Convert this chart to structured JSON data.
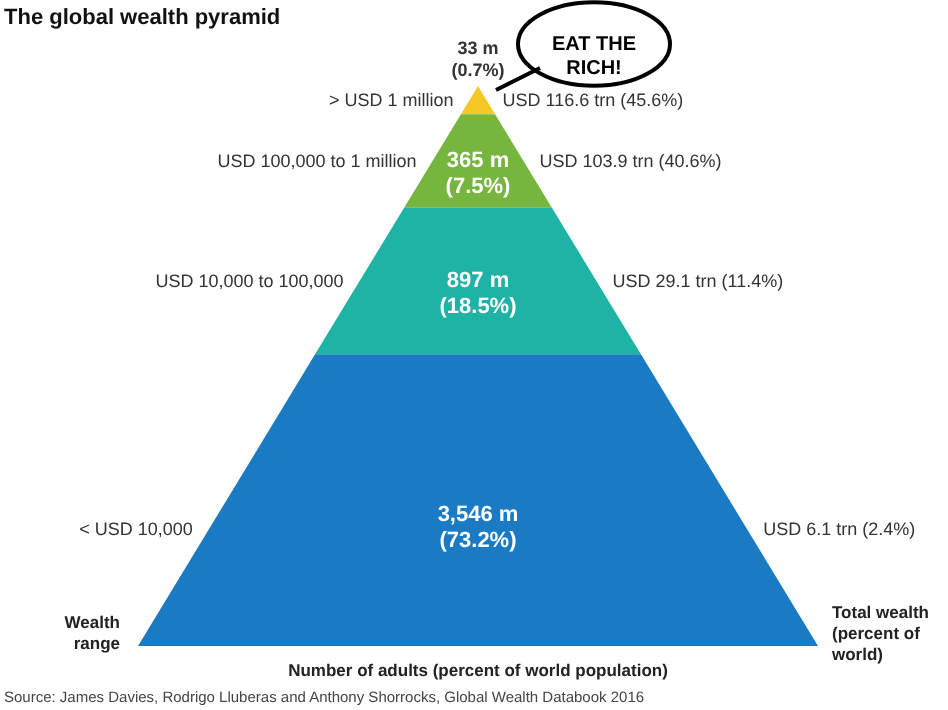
{
  "chart_data": {
    "type": "other",
    "title": "The global wealth pyramid",
    "categories": [
      "> USD 1 million",
      "USD 100,000 to 1 million",
      "USD 10,000 to 100,000",
      "< USD 10,000"
    ],
    "y2_categories": [
      "USD 116.6 trn (45.6%)",
      "USD 103.9 trn (40.6%)",
      "USD 29.1 trn (11.4%)",
      "USD 6.1 trn (2.4%)"
    ],
    "values": [
      33,
      365,
      897,
      3546
    ],
    "value_labels": [
      "33 m (0.7%)",
      "365 m (7.5%)",
      "897 m (18.5%)",
      "3,546 m (73.2%)"
    ],
    "colors": [
      "#f5c827",
      "#76b63f",
      "#1fb3a6",
      "#1a7bc4"
    ],
    "ylabel": "Wealth range",
    "y2label": "Total wealth (percent of world)",
    "xlabel": "Number of adults (percent of world population)",
    "annotations": [
      "EAT THE RICH!",
      "Source: James Davies, Rodrigo Lluberas and Anthony Shorrocks, Global Wealth Databook 2016"
    ]
  }
}
